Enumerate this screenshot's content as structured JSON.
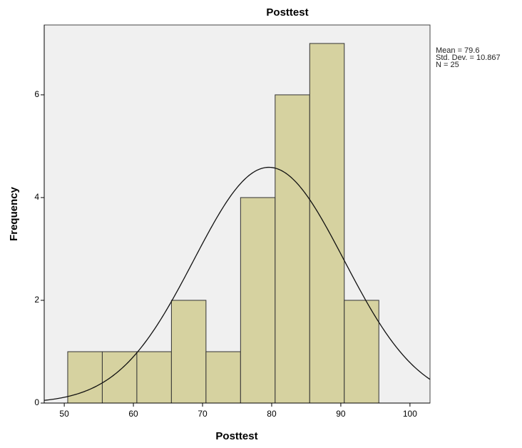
{
  "chart_data": {
    "type": "histogram",
    "title": "Posttest",
    "x_label": "Posttest",
    "y_label": "Frequency",
    "bins": [
      50.5,
      55.5,
      60.5,
      65.5,
      70.5,
      75.5,
      80.5,
      85.5,
      90.5,
      95.5
    ],
    "counts": [
      1,
      1,
      1,
      2,
      1,
      4,
      6,
      7,
      2
    ],
    "color": "#d6d2a0",
    "xlim": [
      47.1,
      102.9
    ],
    "xticks": [
      50,
      60,
      70,
      80,
      90,
      100
    ],
    "ylim": [
      0,
      7.36
    ],
    "yticks": [
      0,
      2,
      4,
      6
    ],
    "stats": [
      {
        "label": "Mean = 79.6",
        "value": 79.6
      },
      {
        "label": "Std. Dev. = 10.867",
        "value": 10.867
      },
      {
        "label": "N = 25",
        "value": 25
      }
    ]
  }
}
